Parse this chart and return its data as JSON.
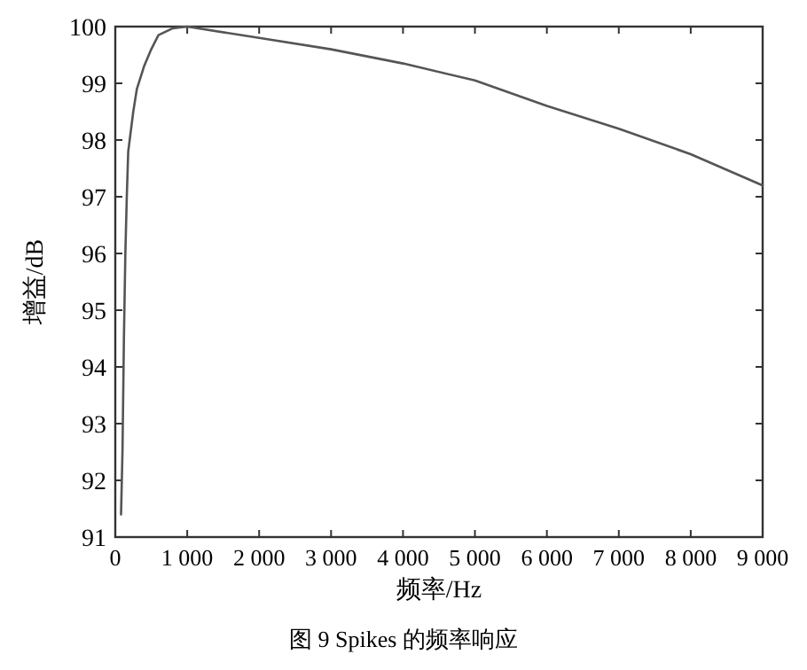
{
  "chart_data": {
    "type": "line",
    "xlabel": "频率/Hz",
    "ylabel": "增益/dB",
    "annotations": [
      "图 9  Spikes 的频率响应"
    ],
    "x": [
      80,
      100,
      120,
      140,
      160,
      180,
      250,
      300,
      400,
      500,
      600,
      800,
      1000,
      2000,
      3000,
      4000,
      5000,
      6000,
      7000,
      8000,
      9000
    ],
    "series": [
      {
        "color": "#555555",
        "values": [
          91.4,
          92.5,
          94.5,
          96,
          97,
          97.8,
          98.5,
          98.9,
          99.3,
          99.6,
          99.85,
          99.97,
          100,
          99.8,
          99.6,
          99.35,
          99.05,
          98.6,
          98.2,
          97.75,
          97.2
        ]
      }
    ],
    "xlim": [
      0,
      9000
    ],
    "ylim": [
      91,
      100
    ],
    "xticks": [
      0,
      {
        "value": 1000,
        "label": "1 000"
      },
      {
        "value": 2000,
        "label": "2 000"
      },
      {
        "value": 3000,
        "label": "3 000"
      },
      {
        "value": 4000,
        "label": "4 000"
      },
      {
        "value": 5000,
        "label": "5 000"
      },
      {
        "value": 6000,
        "label": "6 000"
      },
      {
        "value": 7000,
        "label": "7 000"
      },
      {
        "value": 8000,
        "label": "8 000"
      },
      {
        "value": 9000,
        "label": "9 000"
      }
    ],
    "yticks": [
      91,
      92,
      93,
      94,
      95,
      96,
      97,
      98,
      99,
      100
    ],
    "grid": false,
    "marker": "none",
    "line_style": "solid"
  }
}
